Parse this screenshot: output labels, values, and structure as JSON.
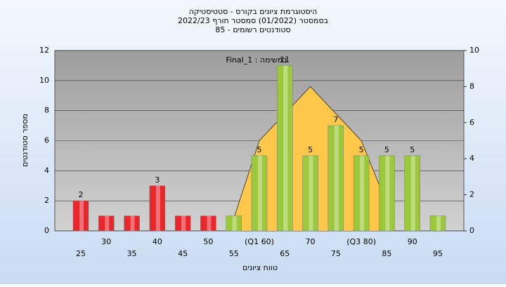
{
  "chart_data": {
    "type": "bar",
    "title": "היסטוגרמת ציונים בקורס - סטטיסטיקה",
    "subtitle": "בסמסטר  (01/2022)  סמסטר חורף 2022/23",
    "subtitle2": "סטודנטים רשומים - 85",
    "annotation": "Final_1 : במשימה",
    "x_label": "טווח ציונים",
    "y_label": "מספר סטודנטים",
    "categories": [
      "25",
      "30",
      "35",
      "40",
      "45",
      "50",
      "55",
      "(Q1 60)",
      "65",
      "70",
      "75",
      "(Q3 80)",
      "85",
      "90",
      "95"
    ],
    "values": [
      2,
      1,
      1,
      3,
      1,
      1,
      1,
      5,
      11,
      5,
      7,
      5,
      5,
      5,
      1
    ],
    "value_labels": [
      "2",
      null,
      null,
      "3",
      null,
      null,
      null,
      "5",
      "11",
      "5",
      "7",
      "5",
      "5",
      "5",
      null
    ],
    "colors": [
      "#e8262b",
      "#e8262b",
      "#e8262b",
      "#e8262b",
      "#e8262b",
      "#e8262b",
      "#9cc83c",
      "#9cc83c",
      "#9cc83c",
      "#9cc83c",
      "#9cc83c",
      "#9cc83c",
      "#9cc83c",
      "#9cc83c",
      "#9cc83c"
    ],
    "ylim": [
      0,
      12
    ],
    "yticks": [
      0,
      2,
      4,
      6,
      8,
      10,
      12
    ],
    "y2lim": [
      0,
      10
    ],
    "y2ticks": [
      0,
      2,
      4,
      6,
      8,
      10
    ],
    "grid": true,
    "curve": {
      "color": "#ffc84a",
      "axis": "y2",
      "values": [
        null,
        null,
        null,
        null,
        null,
        null,
        0.7,
        5,
        null,
        8,
        null,
        5,
        1.5,
        null,
        null
      ]
    }
  }
}
